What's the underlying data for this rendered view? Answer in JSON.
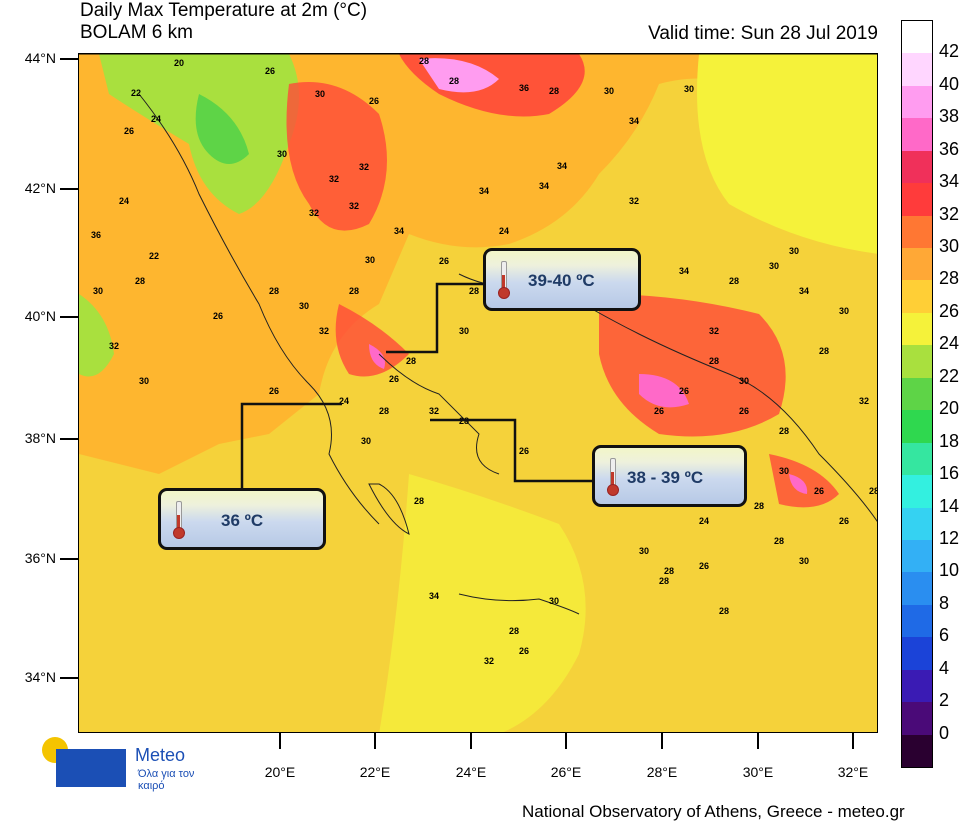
{
  "header": {
    "title_line1": "Daily Max Temperature at 2m (°C)",
    "title_line2": "BOLAM 6 km",
    "valid_time": "Valid time: Sun 28 Jul 2019"
  },
  "axes": {
    "lat_labels": [
      "44°N",
      "42°N",
      "40°N",
      "38°N",
      "36°N",
      "34°N"
    ],
    "lon_labels": [
      "20°E",
      "22°E",
      "24°E",
      "26°E",
      "28°E",
      "30°E",
      "32°E"
    ]
  },
  "colorbar": {
    "labels": [
      "42",
      "40",
      "38",
      "36",
      "34",
      "32",
      "30",
      "28",
      "26",
      "24",
      "22",
      "20",
      "18",
      "16",
      "14",
      "12",
      "10",
      "8",
      "6",
      "4",
      "2",
      "0"
    ],
    "colors": [
      "#ffffff",
      "#ffd6ff",
      "#ff9cf0",
      "#ff69c8",
      "#f0305a",
      "#ff3b3b",
      "#ff7733",
      "#ffa836",
      "#ffcf36",
      "#f5f23a",
      "#a9e03e",
      "#5ed447",
      "#2fd84f",
      "#35e6a0",
      "#33f0e0",
      "#35d2f2",
      "#33b0f5",
      "#2a8ef0",
      "#1f6ae6",
      "#1b43d8",
      "#3a1bb4",
      "#4a0a78",
      "#2a0030"
    ]
  },
  "callouts": [
    {
      "label": "39-40 ºC"
    },
    {
      "label": "38 - 39 ºC"
    },
    {
      "label": "36 ºC"
    }
  ],
  "map_values": [
    "20",
    "22",
    "24",
    "26",
    "26",
    "26",
    "28",
    "28",
    "28",
    "30",
    "30",
    "30",
    "30",
    "32",
    "32",
    "32",
    "32",
    "34",
    "34",
    "34",
    "34",
    "36",
    "36",
    "24",
    "22",
    "30",
    "28",
    "32",
    "30",
    "26",
    "28",
    "30",
    "32",
    "28",
    "30",
    "34",
    "26",
    "28",
    "24",
    "30",
    "28",
    "26",
    "28",
    "30",
    "32",
    "28",
    "26",
    "26",
    "24",
    "28",
    "30",
    "28",
    "26",
    "34",
    "32",
    "28",
    "30",
    "28",
    "26",
    "26",
    "26",
    "28",
    "30",
    "32",
    "34",
    "30",
    "28",
    "26",
    "28",
    "30",
    "28",
    "24",
    "30",
    "28",
    "26",
    "28",
    "28",
    "30",
    "32",
    "34",
    "32",
    "30",
    "28",
    "26"
  ],
  "logo": {
    "name": "Meteo",
    "tagline": "Όλα για τον καιρό"
  },
  "footer": {
    "credit": "National Observatory of Athens, Greece - meteo.gr"
  }
}
